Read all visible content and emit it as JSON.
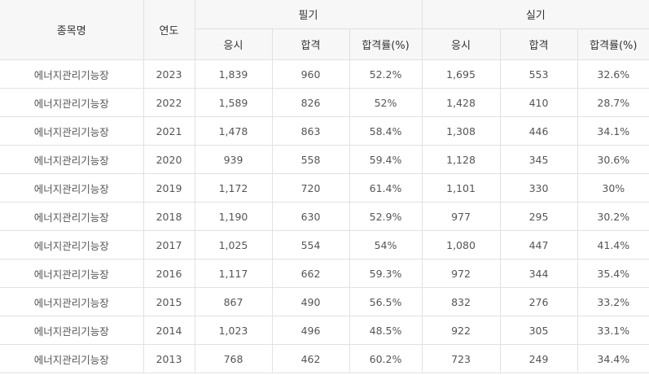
{
  "table": {
    "header": {
      "subject": "종목명",
      "year": "연도",
      "written": "필기",
      "practical": "실기",
      "applied": "응시",
      "passed": "합격",
      "rate": "합격률(%)"
    },
    "rows": [
      {
        "subject": "에너지관리기능장",
        "year": "2023",
        "w_applied": "1,839",
        "w_passed": "960",
        "w_rate": "52.2%",
        "p_applied": "1,695",
        "p_passed": "553",
        "p_rate": "32.6%"
      },
      {
        "subject": "에너지관리기능장",
        "year": "2022",
        "w_applied": "1,589",
        "w_passed": "826",
        "w_rate": "52%",
        "p_applied": "1,428",
        "p_passed": "410",
        "p_rate": "28.7%"
      },
      {
        "subject": "에너지관리기능장",
        "year": "2021",
        "w_applied": "1,478",
        "w_passed": "863",
        "w_rate": "58.4%",
        "p_applied": "1,308",
        "p_passed": "446",
        "p_rate": "34.1%"
      },
      {
        "subject": "에너지관리기능장",
        "year": "2020",
        "w_applied": "939",
        "w_passed": "558",
        "w_rate": "59.4%",
        "p_applied": "1,128",
        "p_passed": "345",
        "p_rate": "30.6%"
      },
      {
        "subject": "에너지관리기능장",
        "year": "2019",
        "w_applied": "1,172",
        "w_passed": "720",
        "w_rate": "61.4%",
        "p_applied": "1,101",
        "p_passed": "330",
        "p_rate": "30%"
      },
      {
        "subject": "에너지관리기능장",
        "year": "2018",
        "w_applied": "1,190",
        "w_passed": "630",
        "w_rate": "52.9%",
        "p_applied": "977",
        "p_passed": "295",
        "p_rate": "30.2%"
      },
      {
        "subject": "에너지관리기능장",
        "year": "2017",
        "w_applied": "1,025",
        "w_passed": "554",
        "w_rate": "54%",
        "p_applied": "1,080",
        "p_passed": "447",
        "p_rate": "41.4%"
      },
      {
        "subject": "에너지관리기능장",
        "year": "2016",
        "w_applied": "1,117",
        "w_passed": "662",
        "w_rate": "59.3%",
        "p_applied": "972",
        "p_passed": "344",
        "p_rate": "35.4%"
      },
      {
        "subject": "에너지관리기능장",
        "year": "2015",
        "w_applied": "867",
        "w_passed": "490",
        "w_rate": "56.5%",
        "p_applied": "832",
        "p_passed": "276",
        "p_rate": "33.2%"
      },
      {
        "subject": "에너지관리기능장",
        "year": "2014",
        "w_applied": "1,023",
        "w_passed": "496",
        "w_rate": "48.5%",
        "p_applied": "922",
        "p_passed": "305",
        "p_rate": "33.1%"
      },
      {
        "subject": "에너지관리기능장",
        "year": "2013",
        "w_applied": "768",
        "w_passed": "462",
        "w_rate": "60.2%",
        "p_applied": "723",
        "p_passed": "249",
        "p_rate": "34.4%"
      }
    ]
  }
}
